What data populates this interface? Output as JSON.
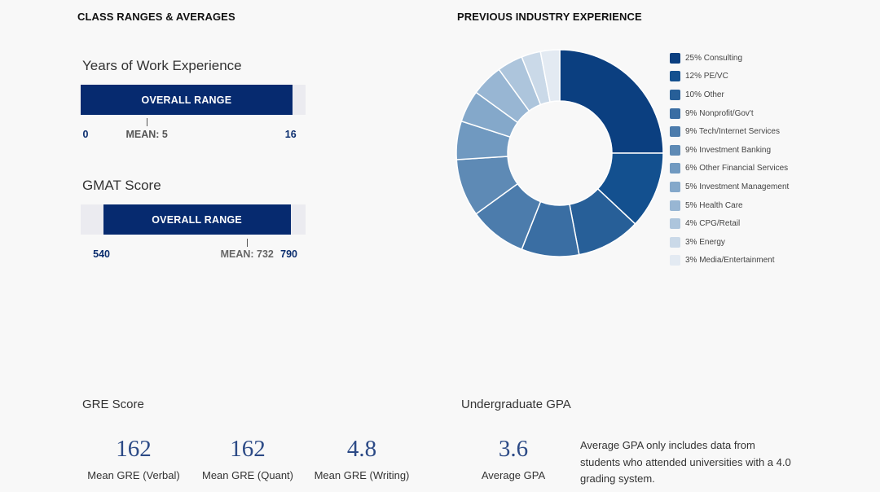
{
  "left_heading": "CLASS RANGES & AVERAGES",
  "right_heading": "PREVIOUS INDUSTRY EXPERIENCE",
  "work_experience": {
    "title": "Years of Work Experience",
    "bar_label": "OVERALL RANGE",
    "axis_min": 0,
    "axis_max": 17,
    "range_min": 0,
    "range_max": 16,
    "mean": 5,
    "min_label": "0",
    "mean_label": "MEAN: 5",
    "max_label": "16"
  },
  "gmat": {
    "title": "GMAT Score",
    "bar_label": "OVERALL RANGE",
    "axis_min": 510,
    "axis_max": 810,
    "range_min": 540,
    "range_max": 790,
    "mean": 732,
    "min_label": "540",
    "mean_label": "MEAN: 732",
    "max_label": "790"
  },
  "chart_data": {
    "type": "pie",
    "title": "PREVIOUS INDUSTRY EXPERIENCE",
    "donut": true,
    "legend_position": "right",
    "categories": [
      "Consulting",
      "PE/VC",
      "Other",
      "Nonprofit/Gov't",
      "Tech/Internet Services",
      "Investment Banking",
      "Other Financial Services",
      "Investment Management",
      "Health Care",
      "CPG/Retail",
      "Energy",
      "Media/Entertainment"
    ],
    "values": [
      25,
      12,
      10,
      9,
      9,
      9,
      6,
      5,
      5,
      4,
      3,
      3
    ],
    "legend_labels": [
      "25% Consulting",
      "12% PE/VC",
      "10% Other",
      "9% Nonprofit/Gov't",
      "9% Tech/Internet Services",
      "9% Investment Banking",
      "6% Other Financial Services",
      "5% Investment Management",
      "5% Health Care",
      "4% CPG/Retail",
      "3% Energy",
      "3% Media/Entertainment"
    ],
    "colors": [
      "#0b3f80",
      "#13508f",
      "#275f98",
      "#3a6ea3",
      "#4c7cac",
      "#5e8ab5",
      "#7099c0",
      "#84a8ca",
      "#98b6d3",
      "#adc5dc",
      "#cad9e8",
      "#e3eaf2"
    ]
  },
  "gre": {
    "title": "GRE Score",
    "stats": [
      {
        "value": "162",
        "label": "Mean GRE (Verbal)"
      },
      {
        "value": "162",
        "label": "Mean GRE (Quant)"
      },
      {
        "value": "4.8",
        "label": "Mean GRE (Writing)"
      }
    ]
  },
  "gpa": {
    "title": "Undergraduate GPA",
    "value": "3.6",
    "label": "Average GPA",
    "note": "Average GPA only includes data from students who attended universities with a 4.0 grading system."
  }
}
